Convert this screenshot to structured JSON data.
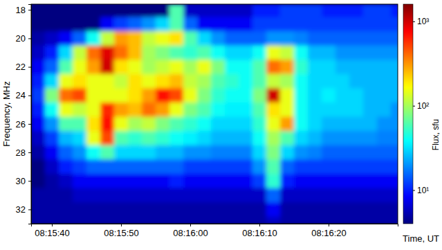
{
  "chart_data": {
    "type": "heatmap",
    "x_label": "Time, UT",
    "y_label": "Frequency, MHz",
    "x": [
      "08:15:37",
      "08:15:39",
      "08:15:41",
      "08:15:43",
      "08:15:45",
      "08:15:47",
      "08:15:49",
      "08:15:51",
      "08:15:53",
      "08:15:55",
      "08:15:57",
      "08:15:59",
      "08:16:01",
      "08:16:03",
      "08:16:05",
      "08:16:07",
      "08:16:09",
      "08:16:11",
      "08:16:13",
      "08:16:15",
      "08:16:17",
      "08:16:19",
      "08:16:21",
      "08:16:23",
      "08:16:25",
      "08:16:27",
      "08:16:29",
      "08:16:31"
    ],
    "y": [
      17.6,
      18.5,
      19.5,
      20.5,
      21.5,
      22.5,
      23.5,
      24.5,
      25.5,
      26.5,
      27.5,
      28.5,
      29.5,
      30.5,
      31.5,
      32.5,
      33
    ],
    "z": [
      [
        4,
        4,
        4,
        4,
        4,
        4,
        4,
        4,
        4,
        4,
        60,
        6,
        6,
        6,
        6,
        6,
        10,
        10,
        12,
        12,
        12,
        10,
        10,
        10,
        12,
        12,
        10
      ],
      [
        4,
        4,
        4,
        4,
        4,
        8,
        12,
        15,
        20,
        30,
        60,
        15,
        8,
        8,
        8,
        8,
        12,
        12,
        12,
        12,
        12,
        12,
        12,
        12,
        12,
        12,
        12
      ],
      [
        5,
        6,
        8,
        15,
        40,
        120,
        300,
        250,
        120,
        150,
        200,
        60,
        30,
        20,
        15,
        15,
        15,
        20,
        20,
        18,
        15,
        15,
        15,
        15,
        15,
        15,
        15
      ],
      [
        6,
        10,
        30,
        120,
        400,
        900,
        400,
        250,
        100,
        80,
        60,
        50,
        60,
        40,
        30,
        30,
        40,
        150,
        120,
        40,
        25,
        25,
        20,
        20,
        20,
        20,
        20
      ],
      [
        8,
        15,
        60,
        150,
        300,
        1000,
        200,
        150,
        100,
        120,
        150,
        100,
        150,
        80,
        40,
        40,
        60,
        400,
        300,
        50,
        30,
        30,
        25,
        25,
        25,
        25,
        25
      ],
      [
        10,
        30,
        150,
        200,
        150,
        150,
        120,
        200,
        150,
        200,
        250,
        120,
        100,
        60,
        50,
        40,
        60,
        120,
        100,
        40,
        30,
        30,
        30,
        25,
        25,
        25,
        25
      ],
      [
        12,
        80,
        400,
        500,
        150,
        150,
        150,
        200,
        300,
        700,
        500,
        150,
        80,
        50,
        40,
        40,
        80,
        1000,
        150,
        40,
        30,
        35,
        30,
        30,
        25,
        25,
        25
      ],
      [
        10,
        40,
        150,
        120,
        150,
        600,
        300,
        250,
        400,
        300,
        150,
        80,
        60,
        40,
        35,
        35,
        60,
        200,
        150,
        40,
        30,
        30,
        30,
        30,
        25,
        25,
        20
      ],
      [
        8,
        20,
        60,
        60,
        200,
        700,
        150,
        100,
        120,
        80,
        60,
        50,
        40,
        30,
        30,
        30,
        50,
        150,
        300,
        40,
        30,
        25,
        25,
        25,
        25,
        20,
        20
      ],
      [
        6,
        12,
        25,
        30,
        150,
        500,
        60,
        50,
        60,
        50,
        40,
        35,
        30,
        25,
        25,
        25,
        40,
        100,
        60,
        30,
        25,
        20,
        20,
        20,
        20,
        18,
        18
      ],
      [
        5,
        8,
        15,
        20,
        40,
        60,
        30,
        30,
        30,
        25,
        25,
        20,
        20,
        18,
        18,
        18,
        30,
        80,
        30,
        20,
        18,
        15,
        15,
        15,
        15,
        15,
        15
      ],
      [
        4,
        6,
        10,
        12,
        15,
        15,
        15,
        15,
        15,
        15,
        15,
        12,
        12,
        12,
        12,
        12,
        20,
        60,
        15,
        12,
        12,
        12,
        12,
        12,
        12,
        12,
        12
      ],
      [
        4,
        5,
        6,
        8,
        8,
        8,
        8,
        8,
        8,
        8,
        10,
        8,
        8,
        8,
        8,
        8,
        12,
        50,
        10,
        8,
        8,
        8,
        8,
        8,
        8,
        8,
        8
      ],
      [
        5,
        5,
        5,
        6,
        6,
        6,
        6,
        6,
        6,
        6,
        6,
        6,
        6,
        6,
        6,
        6,
        6,
        15,
        6,
        6,
        6,
        6,
        6,
        6,
        6,
        6,
        6
      ],
      [
        5,
        5,
        5,
        5,
        5,
        5,
        5,
        5,
        5,
        5,
        5,
        5,
        5,
        5,
        5,
        5,
        5,
        8,
        5,
        5,
        5,
        5,
        5,
        5,
        5,
        5,
        5
      ],
      [
        5,
        5,
        5,
        5,
        5,
        5,
        5,
        5,
        5,
        5,
        5,
        5,
        5,
        5,
        5,
        5,
        5,
        6,
        5,
        5,
        5,
        5,
        5,
        5,
        5,
        5,
        5
      ]
    ],
    "xlim": [
      "08:15:37",
      "08:16:30"
    ],
    "xticks": [
      "08:15:40",
      "08:15:50",
      "08:16:00",
      "08:16:10",
      "08:16:20"
    ],
    "ylim": [
      33,
      17.6
    ],
    "yticks": [
      18,
      20,
      22,
      24,
      26,
      28,
      30,
      32
    ],
    "colorbar": {
      "label": "Flux, sfu",
      "log": true,
      "range": [
        4,
        1600
      ],
      "ticks": [
        {
          "value": 10,
          "label": "10¹"
        },
        {
          "value": 100,
          "label": "10²"
        },
        {
          "value": 1000,
          "label": "10³"
        }
      ]
    }
  }
}
